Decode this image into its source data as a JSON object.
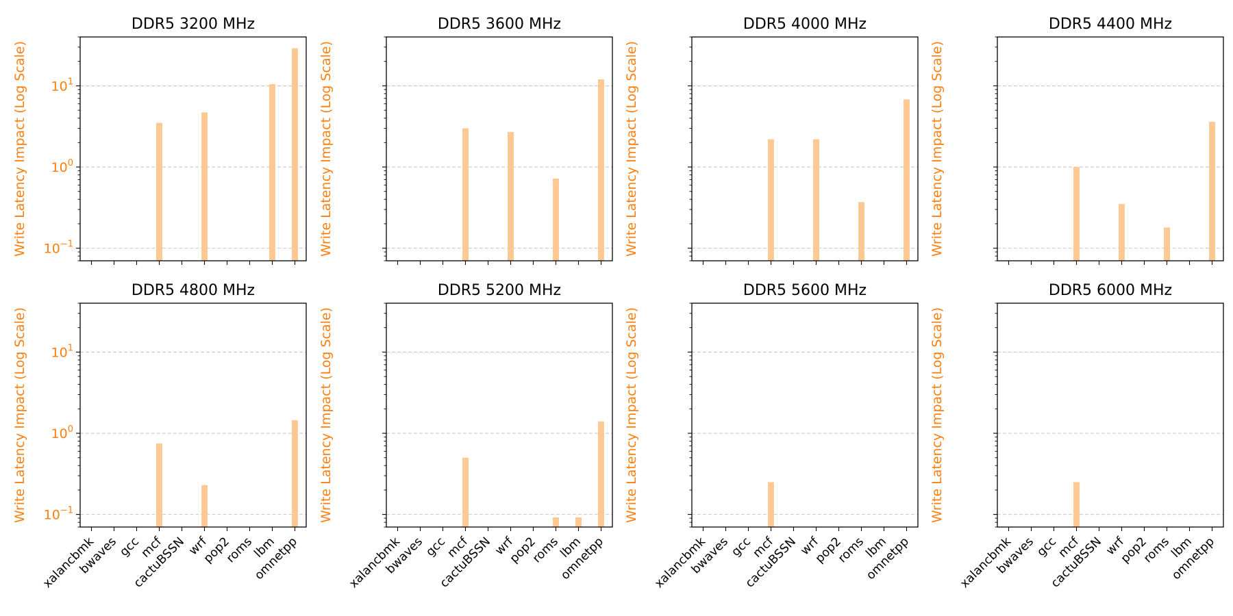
{
  "chart_data": {
    "type": "bar",
    "yscale": "log",
    "ylim": [
      0.07,
      40
    ],
    "grid": "y-major-dashed",
    "ylabel": "Write Latency Impact (Log Scale)",
    "ylabel_color": "#ff7f0e",
    "bar_color": "#ffc994",
    "yticks": [
      {
        "value": 0.1,
        "base": "10",
        "exp": "−1"
      },
      {
        "value": 1,
        "base": "10",
        "exp": "0"
      },
      {
        "value": 10,
        "base": "10",
        "exp": "1"
      }
    ],
    "categories": [
      "xalancbmk",
      "bwaves",
      "gcc",
      "mcf",
      "cactuBSSN",
      "wrf",
      "pop2",
      "roms",
      "lbm",
      "omnetpp"
    ],
    "panels": [
      {
        "title": "DDR5 3200 MHz",
        "values": [
          0,
          0,
          0,
          3.5,
          0,
          4.7,
          0,
          0,
          10.5,
          29
        ]
      },
      {
        "title": "DDR5 3600 MHz",
        "values": [
          0,
          0,
          0,
          3.0,
          0,
          2.7,
          0,
          0.72,
          0,
          12
        ]
      },
      {
        "title": "DDR5 4000 MHz",
        "values": [
          0,
          0,
          0,
          2.2,
          0,
          2.2,
          0,
          0.37,
          0,
          6.8
        ]
      },
      {
        "title": "DDR5 4400 MHz",
        "values": [
          0,
          0,
          0,
          1.0,
          0,
          0.35,
          0,
          0.18,
          0,
          3.6
        ]
      },
      {
        "title": "DDR5 4800 MHz",
        "values": [
          0,
          0,
          0,
          0.75,
          0,
          0.23,
          0,
          0,
          0,
          1.45
        ]
      },
      {
        "title": "DDR5 5200 MHz",
        "values": [
          0,
          0,
          0,
          0.5,
          0,
          0,
          0,
          0.092,
          0.092,
          1.4
        ]
      },
      {
        "title": "DDR5 5600 MHz",
        "values": [
          0,
          0,
          0,
          0.25,
          0,
          0,
          0,
          0,
          0,
          0
        ]
      },
      {
        "title": "DDR5 6000 MHz",
        "values": [
          0,
          0,
          0,
          0.25,
          0,
          0,
          0,
          0,
          0,
          0
        ]
      }
    ]
  }
}
